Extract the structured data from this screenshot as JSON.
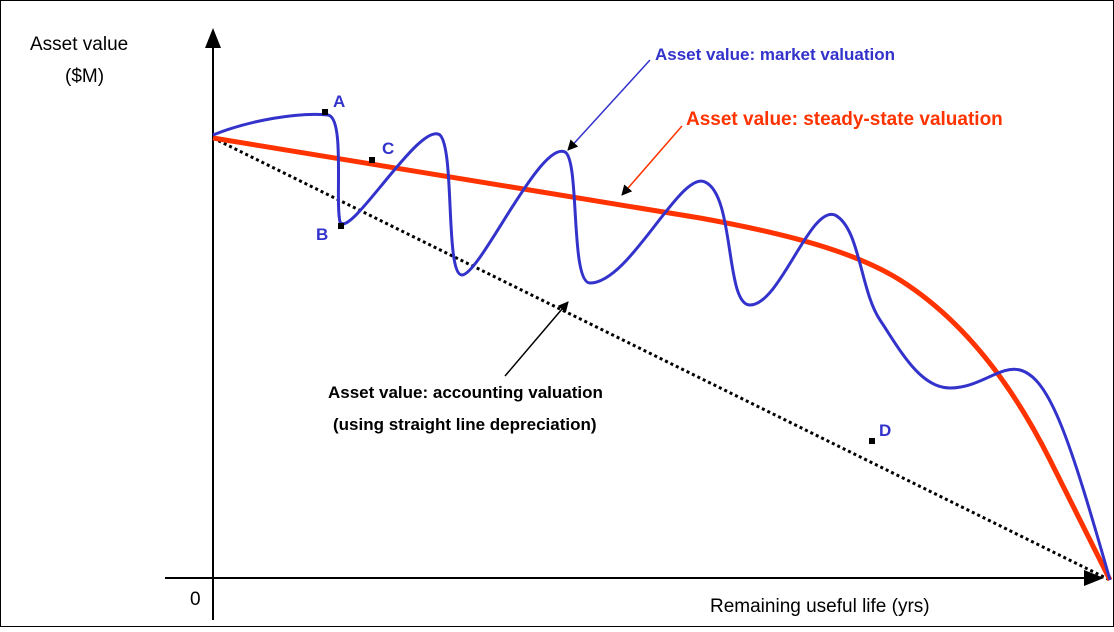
{
  "y_axis_label": [
    "Asset value",
    "($M)"
  ],
  "x_axis_label": "Remaining useful life (yrs)",
  "origin_label": "0",
  "annotations": {
    "market": "Asset value: market valuation",
    "steady_state": "Asset value: steady-state valuation",
    "accounting": [
      "Asset value: accounting valuation",
      "(using straight line depreciation)"
    ]
  },
  "points": [
    "A",
    "B",
    "C",
    "D"
  ]
}
